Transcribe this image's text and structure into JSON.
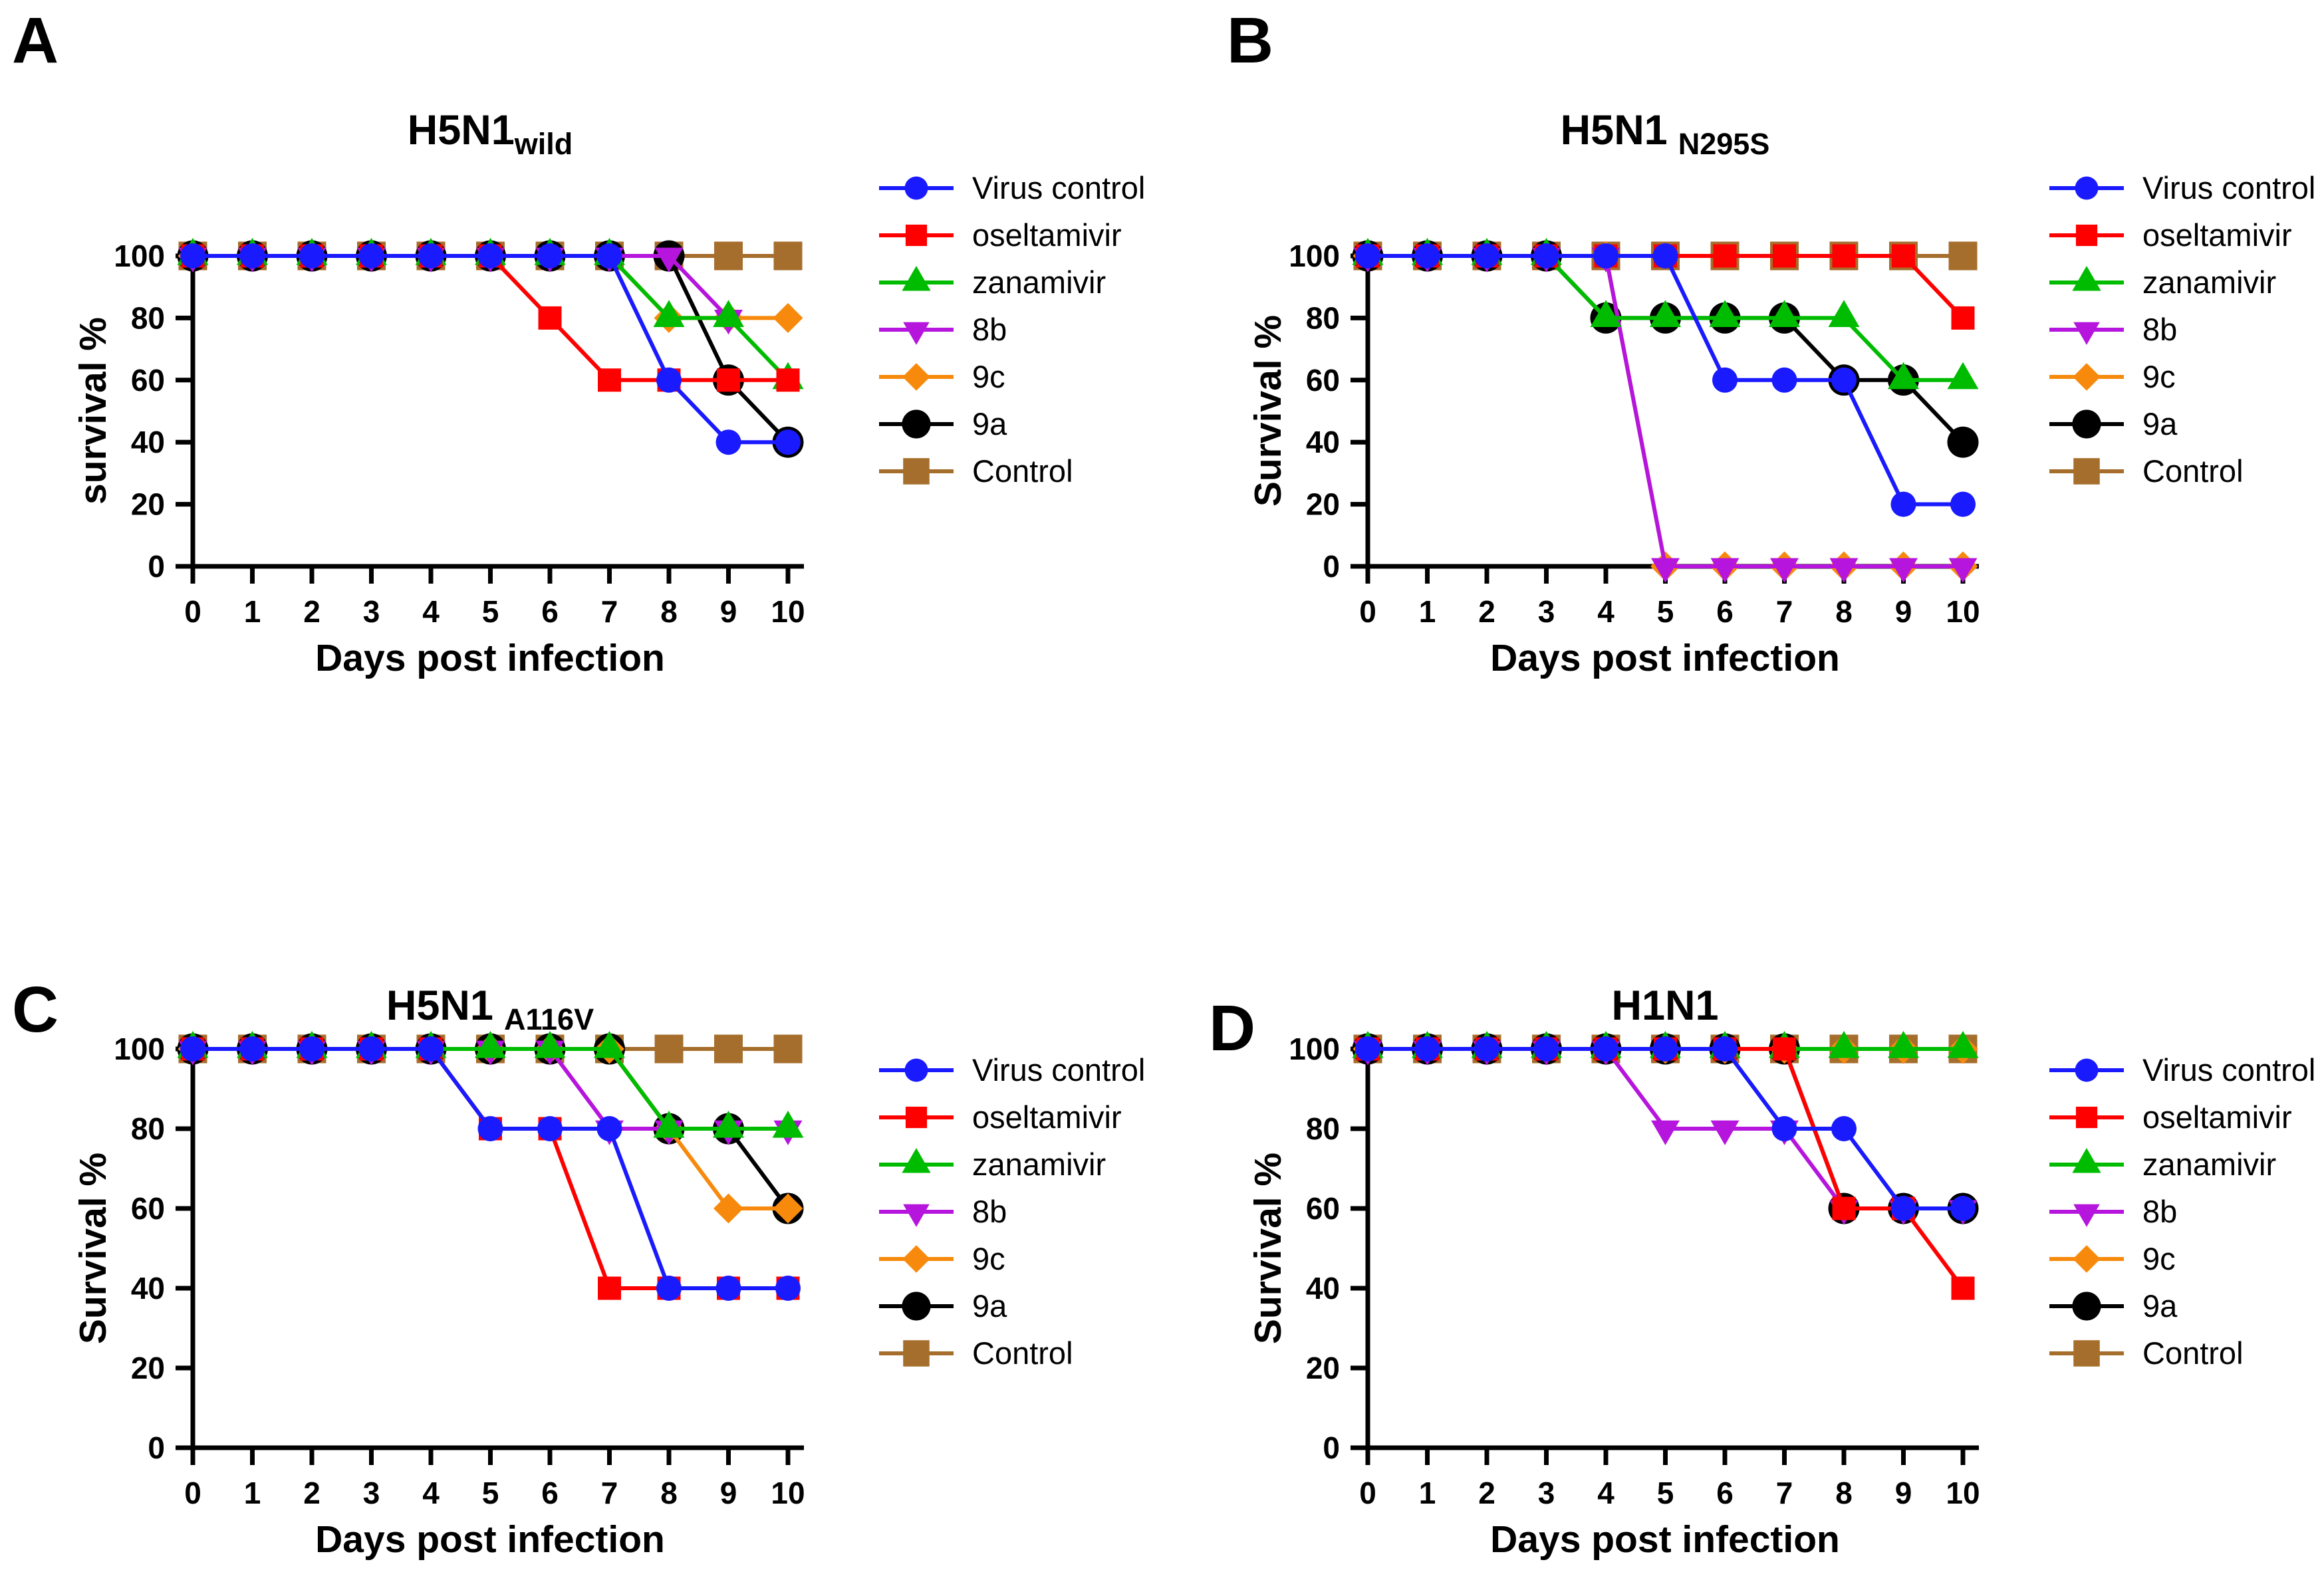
{
  "figure": {
    "background": "#FFFFFF",
    "panel_labels": [
      "A",
      "B",
      "C",
      "D"
    ]
  },
  "series_style": {
    "Virus control": {
      "color": "#1A1AFF",
      "marker": "circle"
    },
    "oseltamivir": {
      "color": "#FF0000",
      "marker": "square"
    },
    "zanamivir": {
      "color": "#00BC00",
      "marker": "triangle-up"
    },
    "8b": {
      "color": "#B515DC",
      "marker": "triangle-down"
    },
    "9c": {
      "color": "#F78A0D",
      "marker": "diamond"
    },
    "9a": {
      "color": "#000000",
      "marker": "circle"
    },
    "Control": {
      "color": "#A66E2C",
      "marker": "square"
    }
  },
  "chart_data": [
    {
      "panel": "A",
      "type": "line",
      "title_main": "H5N1",
      "title_sub": "wild",
      "xlabel": "Days post infection",
      "ylabel": "survival %",
      "x": [
        0,
        1,
        2,
        3,
        4,
        5,
        6,
        7,
        8,
        9,
        10
      ],
      "xticks": [
        0,
        1,
        2,
        3,
        4,
        5,
        6,
        7,
        8,
        9,
        10
      ],
      "yticks": [
        0,
        20,
        40,
        60,
        80,
        100
      ],
      "ylim": [
        0,
        100
      ],
      "grid": false,
      "legend_position": "right",
      "series": [
        {
          "name": "Virus control",
          "values": [
            100,
            100,
            100,
            100,
            100,
            100,
            100,
            100,
            60,
            40,
            40
          ]
        },
        {
          "name": "oseltamivir",
          "values": [
            100,
            100,
            100,
            100,
            100,
            100,
            80,
            60,
            60,
            60,
            60
          ]
        },
        {
          "name": "zanamivir",
          "values": [
            100,
            100,
            100,
            100,
            100,
            100,
            100,
            100,
            80,
            80,
            60
          ]
        },
        {
          "name": "8b",
          "values": [
            100,
            100,
            100,
            100,
            100,
            100,
            100,
            100,
            100,
            80,
            null
          ]
        },
        {
          "name": "9c",
          "values": [
            100,
            100,
            100,
            100,
            100,
            100,
            100,
            100,
            80,
            80,
            80
          ]
        },
        {
          "name": "9a",
          "values": [
            100,
            100,
            100,
            100,
            100,
            100,
            100,
            100,
            100,
            60,
            40
          ]
        },
        {
          "name": "Control",
          "values": [
            100,
            100,
            100,
            100,
            100,
            100,
            100,
            100,
            100,
            100,
            100
          ]
        }
      ]
    },
    {
      "panel": "B",
      "type": "line",
      "title_main": "H5N1",
      "title_sub": "N295S",
      "xlabel": "Days post infection",
      "ylabel": "Survival %",
      "x": [
        0,
        1,
        2,
        3,
        4,
        5,
        6,
        7,
        8,
        9,
        10
      ],
      "xticks": [
        0,
        1,
        2,
        3,
        4,
        5,
        6,
        7,
        8,
        9,
        10
      ],
      "yticks": [
        0,
        20,
        40,
        60,
        80,
        100
      ],
      "ylim": [
        0,
        100
      ],
      "grid": false,
      "legend_position": "right",
      "series": [
        {
          "name": "Virus control",
          "values": [
            100,
            100,
            100,
            100,
            100,
            100,
            60,
            60,
            60,
            20,
            20
          ]
        },
        {
          "name": "oseltamivir",
          "values": [
            100,
            100,
            100,
            100,
            100,
            100,
            100,
            100,
            100,
            100,
            80
          ]
        },
        {
          "name": "zanamivir",
          "values": [
            100,
            100,
            100,
            100,
            80,
            80,
            80,
            80,
            80,
            60,
            60
          ]
        },
        {
          "name": "8b",
          "values": [
            100,
            100,
            100,
            100,
            100,
            0,
            0,
            0,
            0,
            0,
            0
          ]
        },
        {
          "name": "9c",
          "values": [
            100,
            100,
            100,
            100,
            100,
            0,
            0,
            0,
            0,
            0,
            0
          ]
        },
        {
          "name": "9a",
          "values": [
            100,
            100,
            100,
            100,
            80,
            80,
            80,
            80,
            60,
            60,
            40
          ]
        },
        {
          "name": "Control",
          "values": [
            100,
            100,
            100,
            100,
            100,
            100,
            100,
            100,
            100,
            100,
            100
          ]
        }
      ]
    },
    {
      "panel": "C",
      "type": "line",
      "title_main": "H5N1",
      "title_sub": "A116V",
      "xlabel": "Days post infection",
      "ylabel": "Survival %",
      "x": [
        0,
        1,
        2,
        3,
        4,
        5,
        6,
        7,
        8,
        9,
        10
      ],
      "xticks": [
        0,
        1,
        2,
        3,
        4,
        5,
        6,
        7,
        8,
        9,
        10
      ],
      "yticks": [
        0,
        20,
        40,
        60,
        80,
        100
      ],
      "ylim": [
        0,
        100
      ],
      "grid": false,
      "legend_position": "right",
      "series": [
        {
          "name": "Virus control",
          "values": [
            100,
            100,
            100,
            100,
            100,
            80,
            80,
            80,
            40,
            40,
            40
          ]
        },
        {
          "name": "oseltamivir",
          "values": [
            100,
            100,
            100,
            100,
            100,
            80,
            80,
            40,
            40,
            40,
            40
          ]
        },
        {
          "name": "zanamivir",
          "values": [
            100,
            100,
            100,
            100,
            100,
            100,
            100,
            100,
            80,
            80,
            80
          ]
        },
        {
          "name": "8b",
          "values": [
            100,
            100,
            100,
            100,
            100,
            100,
            100,
            80,
            80,
            80,
            80
          ]
        },
        {
          "name": "9c",
          "values": [
            100,
            100,
            100,
            100,
            100,
            100,
            100,
            100,
            80,
            60,
            60
          ]
        },
        {
          "name": "9a",
          "values": [
            100,
            100,
            100,
            100,
            100,
            100,
            100,
            100,
            80,
            80,
            60
          ]
        },
        {
          "name": "Control",
          "values": [
            100,
            100,
            100,
            100,
            100,
            100,
            100,
            100,
            100,
            100,
            100
          ]
        }
      ]
    },
    {
      "panel": "D",
      "type": "line",
      "title_main": "H1N1",
      "title_sub": "",
      "xlabel": "Days post infection",
      "ylabel": "Survival %",
      "x": [
        0,
        1,
        2,
        3,
        4,
        5,
        6,
        7,
        8,
        9,
        10
      ],
      "xticks": [
        0,
        1,
        2,
        3,
        4,
        5,
        6,
        7,
        8,
        9,
        10
      ],
      "yticks": [
        0,
        20,
        40,
        60,
        80,
        100
      ],
      "ylim": [
        0,
        100
      ],
      "grid": false,
      "legend_position": "right",
      "series": [
        {
          "name": "Virus control",
          "values": [
            100,
            100,
            100,
            100,
            100,
            100,
            100,
            80,
            80,
            60,
            60
          ]
        },
        {
          "name": "oseltamivir",
          "values": [
            100,
            100,
            100,
            100,
            100,
            100,
            100,
            100,
            60,
            60,
            40
          ]
        },
        {
          "name": "zanamivir",
          "values": [
            100,
            100,
            100,
            100,
            100,
            100,
            100,
            100,
            100,
            100,
            100
          ]
        },
        {
          "name": "8b",
          "values": [
            100,
            100,
            100,
            100,
            100,
            80,
            80,
            80,
            60,
            60,
            60
          ]
        },
        {
          "name": "9c",
          "values": [
            100,
            100,
            100,
            100,
            100,
            100,
            100,
            100,
            100,
            100,
            100
          ]
        },
        {
          "name": "9a",
          "values": [
            100,
            100,
            100,
            100,
            100,
            100,
            100,
            100,
            60,
            60,
            60
          ]
        },
        {
          "name": "Control",
          "values": [
            100,
            100,
            100,
            100,
            100,
            100,
            100,
            100,
            100,
            100,
            100
          ]
        }
      ]
    }
  ]
}
